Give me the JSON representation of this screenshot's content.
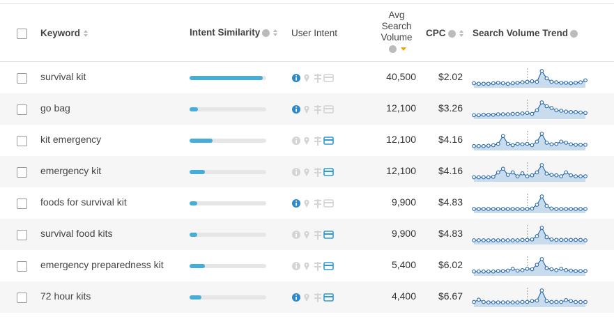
{
  "table": {
    "headers": {
      "keyword": "Keyword",
      "intent_similarity": "Intent Similarity",
      "user_intent": "User Intent",
      "volume": "Avg Search Volume",
      "cpc": "CPC",
      "trend": "Search Volume Trend"
    },
    "similarity_lim": [
      0,
      100
    ],
    "rows": [
      {
        "keyword": "survival kit",
        "similarity": 95,
        "intents": [
          true,
          false,
          false,
          false
        ],
        "volume": "40,500",
        "cpc": "$2.02",
        "trend": [
          10,
          8,
          8,
          8,
          10,
          12,
          10,
          8,
          10,
          12,
          14,
          16,
          18,
          16,
          60,
          30,
          16,
          14,
          12,
          12,
          10,
          12,
          14,
          22
        ]
      },
      {
        "keyword": "go bag",
        "similarity": 11,
        "intents": [
          true,
          false,
          false,
          false
        ],
        "volume": "12,100",
        "cpc": "$3.26",
        "trend": [
          8,
          8,
          10,
          10,
          10,
          12,
          12,
          12,
          14,
          14,
          16,
          18,
          14,
          30,
          65,
          48,
          40,
          30,
          28,
          24,
          22,
          22,
          20,
          18
        ]
      },
      {
        "keyword": "kit emergency",
        "similarity": 30,
        "intents": [
          false,
          false,
          false,
          true
        ],
        "volume": "12,100",
        "cpc": "$4.16",
        "trend": [
          10,
          10,
          10,
          12,
          14,
          20,
          55,
          20,
          14,
          20,
          18,
          20,
          14,
          30,
          65,
          25,
          18,
          20,
          30,
          25,
          18,
          16,
          16,
          16
        ]
      },
      {
        "keyword": "emergency kit",
        "similarity": 20,
        "intents": [
          false,
          false,
          false,
          true
        ],
        "volume": "12,100",
        "cpc": "$4.16",
        "trend": [
          10,
          10,
          10,
          10,
          12,
          30,
          45,
          20,
          30,
          14,
          26,
          14,
          18,
          30,
          60,
          25,
          20,
          18,
          14,
          30,
          18,
          14,
          14,
          14
        ]
      },
      {
        "keyword": "foods for survival kit",
        "similarity": 10,
        "intents": [
          true,
          false,
          false,
          false
        ],
        "volume": "9,900",
        "cpc": "$4.83",
        "trend": [
          10,
          10,
          10,
          10,
          10,
          10,
          10,
          10,
          10,
          10,
          10,
          10,
          12,
          30,
          70,
          25,
          12,
          10,
          10,
          10,
          10,
          10,
          10,
          10
        ]
      },
      {
        "keyword": "survival food kits",
        "similarity": 10,
        "intents": [
          false,
          false,
          false,
          true
        ],
        "volume": "9,900",
        "cpc": "$4.83",
        "trend": [
          10,
          10,
          10,
          10,
          10,
          10,
          10,
          10,
          10,
          10,
          12,
          12,
          14,
          30,
          70,
          25,
          14,
          12,
          12,
          12,
          12,
          12,
          12,
          10
        ]
      },
      {
        "keyword": "emergency preparedness kit",
        "similarity": 20,
        "intents": [
          false,
          false,
          false,
          true
        ],
        "volume": "5,400",
        "cpc": "$6.02",
        "trend": [
          10,
          10,
          10,
          10,
          10,
          12,
          12,
          14,
          22,
          14,
          16,
          22,
          20,
          40,
          65,
          25,
          20,
          16,
          22,
          16,
          14,
          12,
          12,
          12
        ]
      },
      {
        "keyword": "72 hour kits",
        "similarity": 15,
        "intents": [
          true,
          false,
          false,
          true
        ],
        "volume": "4,400",
        "cpc": "$6.67",
        "trend": [
          14,
          24,
          14,
          12,
          12,
          12,
          12,
          12,
          12,
          12,
          14,
          14,
          18,
          20,
          65,
          18,
          14,
          14,
          14,
          22,
          18,
          14,
          14,
          14
        ]
      }
    ]
  }
}
